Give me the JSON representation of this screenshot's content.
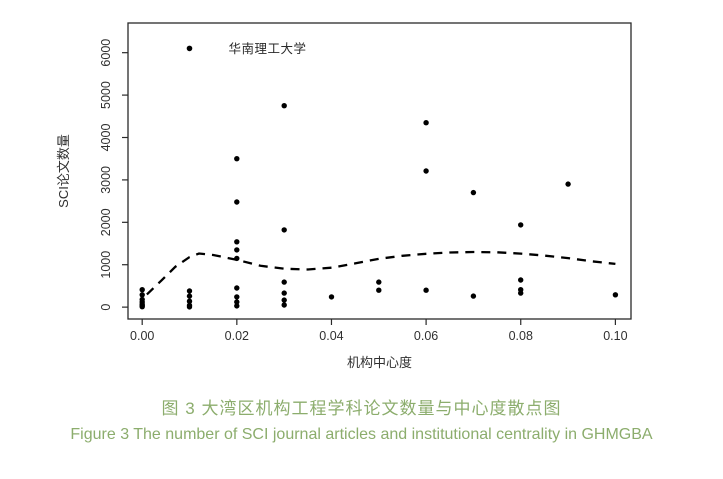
{
  "figure": {
    "captions": {
      "chinese": "图 3  大湾区机构工程学科论文数量与中心度散点图",
      "english": "Figure 3  The number of SCI journal articles and institutional centrality in GHMGBA"
    },
    "caption_color": "#8cad6d"
  },
  "chart_data": {
    "type": "scatter",
    "title": "",
    "xlabel": "机构中心度",
    "ylabel": "SCI论文数量",
    "legend_position": "inside-top-left",
    "grid": false,
    "axis_color": "#2a2a2a",
    "point_color": "#000000",
    "trend_color": "#000000",
    "xlim": [
      -0.003,
      0.1033
    ],
    "ylim": [
      -280,
      6700
    ],
    "x_tick_labels": [
      "0.00",
      "0.02",
      "0.04",
      "0.06",
      "0.08",
      "0.10"
    ],
    "x_tick_values": [
      0.0,
      0.02,
      0.04,
      0.06,
      0.08,
      0.1
    ],
    "y_tick_labels": [
      "0",
      "1000",
      "2000",
      "3000",
      "4000",
      "5000",
      "6000"
    ],
    "y_tick_values": [
      0,
      1000,
      2000,
      3000,
      4000,
      5000,
      6000
    ],
    "labeled_point": {
      "x": 0.01,
      "y": 6100,
      "label": "华南理工大学"
    },
    "points": [
      [
        0.0,
        410
      ],
      [
        0.0,
        290
      ],
      [
        0.0,
        180
      ],
      [
        0.0,
        120
      ],
      [
        0.0,
        70
      ],
      [
        0.0,
        35
      ],
      [
        0.0,
        10
      ],
      [
        0.01,
        380
      ],
      [
        0.01,
        260
      ],
      [
        0.01,
        140
      ],
      [
        0.01,
        40
      ],
      [
        0.01,
        5
      ],
      [
        0.02,
        3500
      ],
      [
        0.02,
        2480
      ],
      [
        0.02,
        1540
      ],
      [
        0.02,
        1350
      ],
      [
        0.02,
        1150
      ],
      [
        0.02,
        450
      ],
      [
        0.02,
        240
      ],
      [
        0.02,
        120
      ],
      [
        0.02,
        30
      ],
      [
        0.03,
        4750
      ],
      [
        0.03,
        1820
      ],
      [
        0.03,
        590
      ],
      [
        0.03,
        330
      ],
      [
        0.03,
        165
      ],
      [
        0.03,
        50
      ],
      [
        0.04,
        240
      ],
      [
        0.05,
        590
      ],
      [
        0.05,
        400
      ],
      [
        0.06,
        4350
      ],
      [
        0.06,
        3210
      ],
      [
        0.06,
        400
      ],
      [
        0.07,
        2700
      ],
      [
        0.07,
        260
      ],
      [
        0.08,
        1940
      ],
      [
        0.08,
        640
      ],
      [
        0.08,
        410
      ],
      [
        0.08,
        330
      ],
      [
        0.09,
        2900
      ],
      [
        0.1,
        290
      ]
    ],
    "trend_line": {
      "style": "dashed",
      "points": [
        [
          0.001,
          300
        ],
        [
          0.004,
          620
        ],
        [
          0.007,
          950
        ],
        [
          0.01,
          1180
        ],
        [
          0.012,
          1265
        ],
        [
          0.015,
          1230
        ],
        [
          0.02,
          1115
        ],
        [
          0.025,
          975
        ],
        [
          0.03,
          905
        ],
        [
          0.035,
          888
        ],
        [
          0.04,
          930
        ],
        [
          0.045,
          1030
        ],
        [
          0.05,
          1140
        ],
        [
          0.055,
          1210
        ],
        [
          0.06,
          1258
        ],
        [
          0.065,
          1288
        ],
        [
          0.07,
          1300
        ],
        [
          0.075,
          1292
        ],
        [
          0.08,
          1262
        ],
        [
          0.085,
          1215
        ],
        [
          0.09,
          1155
        ],
        [
          0.095,
          1080
        ],
        [
          0.1,
          1020
        ]
      ]
    }
  }
}
